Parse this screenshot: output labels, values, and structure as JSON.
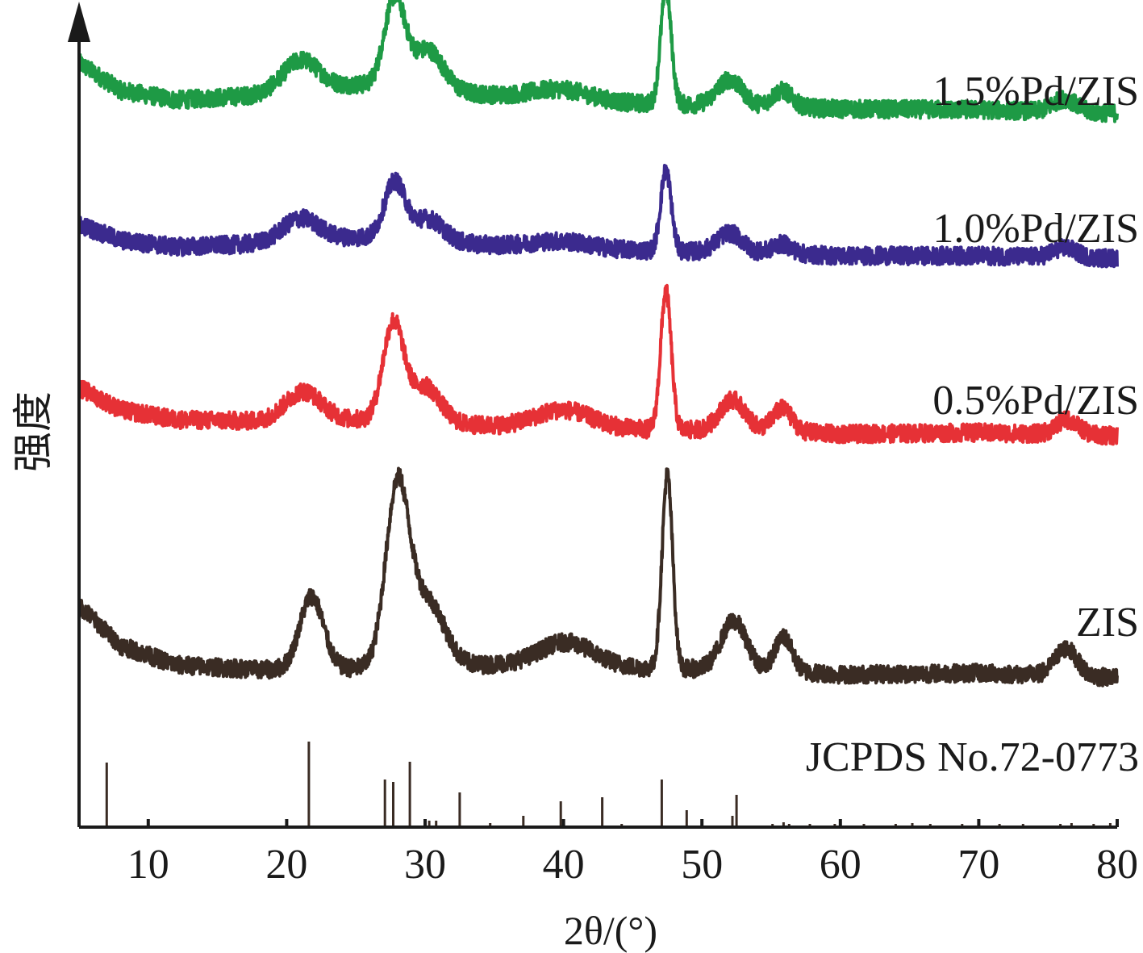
{
  "chart_data": {
    "type": "line",
    "xlabel": "2θ/(°)",
    "ylabel": "强度",
    "xlim": [
      5,
      80
    ],
    "x_ticks": [
      "10",
      "20",
      "30",
      "40",
      "50",
      "60",
      "70",
      "80"
    ],
    "x_tick_values": [
      10,
      20,
      30,
      40,
      50,
      60,
      70,
      80
    ],
    "grid": false,
    "legend": "none (series labelled inline at right)",
    "y_ticks": [],
    "series": [
      {
        "name": "1.5%Pd/ZIS",
        "color": "#1e9a45",
        "offset": 700,
        "background": [
          [
            5,
            62
          ],
          [
            8,
            28
          ],
          [
            12,
            16
          ],
          [
            18,
            22
          ],
          [
            25,
            35
          ],
          [
            35,
            22
          ],
          [
            45,
            12
          ],
          [
            55,
            8
          ],
          [
            60,
            5
          ],
          [
            70,
            4
          ],
          [
            80,
            0
          ]
        ],
        "peaks": [
          {
            "center": 21.0,
            "height": 38,
            "width": 1.3
          },
          {
            "center": 27.8,
            "height": 110,
            "width": 0.75
          },
          {
            "center": 30.2,
            "height": 50,
            "width": 1.1
          },
          {
            "center": 39.8,
            "height": 12,
            "width": 2.0
          },
          {
            "center": 47.4,
            "height": 142,
            "width": 0.38
          },
          {
            "center": 52.0,
            "height": 32,
            "width": 0.9
          },
          {
            "center": 55.8,
            "height": 20,
            "width": 0.7
          },
          {
            "center": 76.2,
            "height": 16,
            "width": 0.8
          }
        ]
      },
      {
        "name": "1.0%Pd/ZIS",
        "color": "#3b2a8e",
        "offset": 520,
        "background": [
          [
            5,
            42
          ],
          [
            8,
            22
          ],
          [
            12,
            14
          ],
          [
            18,
            18
          ],
          [
            25,
            26
          ],
          [
            35,
            16
          ],
          [
            45,
            10
          ],
          [
            55,
            6
          ],
          [
            60,
            3
          ],
          [
            70,
            3
          ],
          [
            80,
            0
          ]
        ],
        "peaks": [
          {
            "center": 21.0,
            "height": 28,
            "width": 1.3
          },
          {
            "center": 27.8,
            "height": 70,
            "width": 0.75
          },
          {
            "center": 30.2,
            "height": 28,
            "width": 1.1
          },
          {
            "center": 39.8,
            "height": 8,
            "width": 2.0
          },
          {
            "center": 47.4,
            "height": 100,
            "width": 0.38
          },
          {
            "center": 52.0,
            "height": 24,
            "width": 0.9
          },
          {
            "center": 55.8,
            "height": 12,
            "width": 0.7
          },
          {
            "center": 76.2,
            "height": 12,
            "width": 0.8
          }
        ]
      },
      {
        "name": "0.5%Pd/ZIS",
        "color": "#e63136",
        "offset": 300,
        "background": [
          [
            5,
            60
          ],
          [
            8,
            32
          ],
          [
            12,
            20
          ],
          [
            18,
            18
          ],
          [
            25,
            20
          ],
          [
            35,
            12
          ],
          [
            45,
            8
          ],
          [
            55,
            6
          ],
          [
            60,
            2
          ],
          [
            70,
            4
          ],
          [
            80,
            0
          ]
        ],
        "peaks": [
          {
            "center": 21.2,
            "height": 36,
            "width": 1.3
          },
          {
            "center": 27.7,
            "height": 120,
            "width": 0.75
          },
          {
            "center": 30.0,
            "height": 45,
            "width": 1.1
          },
          {
            "center": 40.0,
            "height": 22,
            "width": 2.0
          },
          {
            "center": 47.4,
            "height": 172,
            "width": 0.38
          },
          {
            "center": 52.2,
            "height": 38,
            "width": 0.9
          },
          {
            "center": 55.8,
            "height": 28,
            "width": 0.7
          },
          {
            "center": 76.4,
            "height": 18,
            "width": 0.8
          }
        ]
      },
      {
        "name": "ZIS",
        "color": "#3a2c24",
        "offset": 0,
        "background": [
          [
            5,
            90
          ],
          [
            8,
            40
          ],
          [
            12,
            16
          ],
          [
            18,
            10
          ],
          [
            25,
            12
          ],
          [
            35,
            16
          ],
          [
            45,
            12
          ],
          [
            55,
            10
          ],
          [
            60,
            4
          ],
          [
            70,
            6
          ],
          [
            80,
            0
          ]
        ],
        "peaks": [
          {
            "center": 21.8,
            "height": 90,
            "width": 0.85
          },
          {
            "center": 28.0,
            "height": 220,
            "width": 0.85
          },
          {
            "center": 30.2,
            "height": 80,
            "width": 1.2
          },
          {
            "center": 40.2,
            "height": 30,
            "width": 2.0
          },
          {
            "center": 47.5,
            "height": 240,
            "width": 0.38
          },
          {
            "center": 52.3,
            "height": 60,
            "width": 0.9
          },
          {
            "center": 55.9,
            "height": 42,
            "width": 0.6
          },
          {
            "center": 76.3,
            "height": 34,
            "width": 0.8
          }
        ]
      }
    ],
    "reference": {
      "name": "JCPDS No.72-0773",
      "color": "#3a2c24",
      "sticks": [
        {
          "x": 7.0,
          "h": 80
        },
        {
          "x": 21.6,
          "h": 106
        },
        {
          "x": 27.1,
          "h": 59
        },
        {
          "x": 27.7,
          "h": 56
        },
        {
          "x": 28.9,
          "h": 81
        },
        {
          "x": 30.3,
          "h": 8
        },
        {
          "x": 30.8,
          "h": 8
        },
        {
          "x": 32.5,
          "h": 43
        },
        {
          "x": 34.7,
          "h": 5
        },
        {
          "x": 37.1,
          "h": 14
        },
        {
          "x": 39.8,
          "h": 32
        },
        {
          "x": 42.8,
          "h": 37
        },
        {
          "x": 44.2,
          "h": 4
        },
        {
          "x": 47.1,
          "h": 59
        },
        {
          "x": 48.9,
          "h": 21
        },
        {
          "x": 52.2,
          "h": 14
        },
        {
          "x": 52.5,
          "h": 40
        },
        {
          "x": 55.1,
          "h": 4
        },
        {
          "x": 55.9,
          "h": 6
        },
        {
          "x": 56.3,
          "h": 4
        },
        {
          "x": 57.8,
          "h": 4
        },
        {
          "x": 59.6,
          "h": 4
        },
        {
          "x": 61.7,
          "h": 4
        },
        {
          "x": 64.0,
          "h": 4
        },
        {
          "x": 65.2,
          "h": 5
        },
        {
          "x": 66.5,
          "h": 4
        },
        {
          "x": 68.8,
          "h": 4
        },
        {
          "x": 70.0,
          "h": 7
        },
        {
          "x": 71.5,
          "h": 4
        },
        {
          "x": 73.2,
          "h": 4
        },
        {
          "x": 75.9,
          "h": 4
        },
        {
          "x": 76.7,
          "h": 5
        },
        {
          "x": 78.3,
          "h": 4
        },
        {
          "x": 79.5,
          "h": 5
        }
      ]
    }
  }
}
